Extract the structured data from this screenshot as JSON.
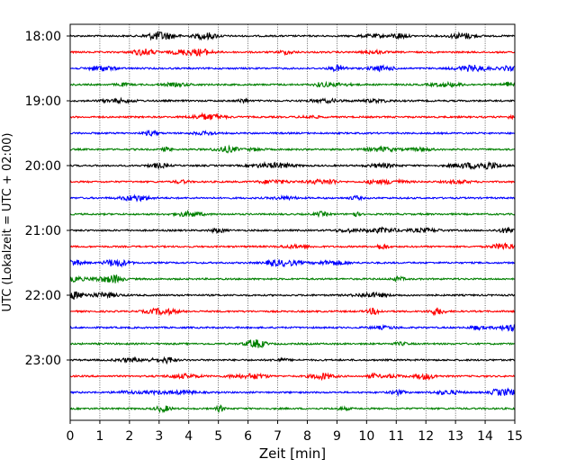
{
  "chart_data": {
    "type": "line",
    "title": "",
    "xlabel": "Zeit  [min]",
    "ylabel": "UTC (Lokalzeit = UTC + 02:00)",
    "xlim": [
      0,
      15
    ],
    "x_ticks": [
      "0",
      "1",
      "2",
      "3",
      "4",
      "5",
      "6",
      "7",
      "8",
      "9",
      "10",
      "11",
      "12",
      "13",
      "14",
      "15"
    ],
    "y_ticks": [
      "18:00",
      "19:00",
      "20:00",
      "21:00",
      "22:00",
      "23:00"
    ],
    "trace_interval_min": 15,
    "trace_start_utc": "18:00",
    "trace_count": 24,
    "trace_colors": [
      "#000000",
      "#ff0000",
      "#0000ff",
      "#008000"
    ],
    "grid": "x",
    "series": [
      {
        "start": "18:00"
      },
      {
        "start": "18:15"
      },
      {
        "start": "18:30"
      },
      {
        "start": "18:45"
      },
      {
        "start": "19:00"
      },
      {
        "start": "19:15"
      },
      {
        "start": "19:30"
      },
      {
        "start": "19:45"
      },
      {
        "start": "20:00"
      },
      {
        "start": "20:15"
      },
      {
        "start": "20:30"
      },
      {
        "start": "20:45"
      },
      {
        "start": "21:00"
      },
      {
        "start": "21:15"
      },
      {
        "start": "21:30"
      },
      {
        "start": "21:45"
      },
      {
        "start": "22:00"
      },
      {
        "start": "22:15"
      },
      {
        "start": "22:30"
      },
      {
        "start": "22:45"
      },
      {
        "start": "23:00"
      },
      {
        "start": "23:15"
      },
      {
        "start": "23:30"
      },
      {
        "start": "23:45"
      }
    ]
  }
}
